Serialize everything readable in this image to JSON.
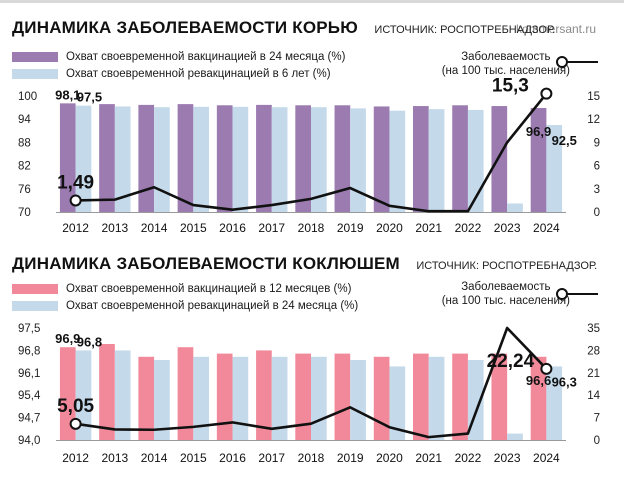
{
  "watermark": "kommersant.ru",
  "charts": [
    {
      "title": "ДИНАМИКА ЗАБОЛЕВАЕМОСТИ КОРЬЮ",
      "source": "ИСТОЧНИК: РОСПОТРЕБНАДЗОР.",
      "legend": {
        "bar1": "Охват своевременной вакцинацией в 24 месяца (%)",
        "bar2": "Охват своевременной ревакцинацией в 6 лет (%)",
        "line_1": "Заболеваемость",
        "line_2": "(на 100 тыс. населения)"
      },
      "colors": {
        "bar1": "#9b7bb0",
        "bar2": "#c4d9ea",
        "line": "#111111"
      }
    },
    {
      "title": "ДИНАМИКА ЗАБОЛЕВАЕМОСТИ КОКЛЮШЕМ",
      "source": "ИСТОЧНИК: РОСПОТРЕБНАДЗОР.",
      "legend": {
        "bar1": "Охват своевременной вакцинацией в 12 месяцев (%)",
        "bar2": "Охват своевременной ревакцинацией в 24 месяца (%)",
        "line_1": "Заболеваемость",
        "line_2": "(на 100 тыс. населения)"
      },
      "colors": {
        "bar1": "#f2899a",
        "bar2": "#c4d9ea",
        "line": "#111111"
      }
    }
  ],
  "chart_data": [
    {
      "type": "bar",
      "title": "ДИНАМИКА ЗАБОЛЕВАЕМОСТИ КОРЬЮ",
      "categories": [
        "2012",
        "2013",
        "2014",
        "2015",
        "2016",
        "2017",
        "2018",
        "2019",
        "2020",
        "2021",
        "2022",
        "2023",
        "2024"
      ],
      "series": [
        {
          "name": "Охват своевременной вакцинацией в 24 месяца (%)",
          "values": [
            98.1,
            97.9,
            97.7,
            97.9,
            97.6,
            97.7,
            97.6,
            97.6,
            97.3,
            97.4,
            97.6,
            97.4,
            96.9
          ]
        },
        {
          "name": "Охват своевременной ревакцинацией в 6 лет (%)",
          "values": [
            97.5,
            97.3,
            97.1,
            97.2,
            97.2,
            97.1,
            97.1,
            96.8,
            96.2,
            96.6,
            96.4,
            72.2,
            92.5
          ]
        }
      ],
      "line": {
        "name": "Заболеваемость (на 100 тыс. населения)",
        "values": [
          1.49,
          1.6,
          3.2,
          0.9,
          0.3,
          0.9,
          1.7,
          3.1,
          0.8,
          0.1,
          0.1,
          9.0,
          15.3
        ]
      },
      "ylim_left": [
        70,
        100
      ],
      "yticks_left": [
        70,
        76,
        82,
        88,
        94,
        100
      ],
      "ylim_right": [
        0,
        15
      ],
      "yticks_right": [
        0,
        3,
        6,
        9,
        12,
        15
      ],
      "labels": {
        "bar1_first": "98,1",
        "bar2_first": "97,5",
        "bar1_last": "96,9",
        "bar2_last": "92,5",
        "line_first": "1,49",
        "line_last": "15,3"
      }
    },
    {
      "type": "bar",
      "title": "ДИНАМИКА ЗАБОЛЕВАЕМОСТИ КОКЛЮШЕМ",
      "categories": [
        "2012",
        "2013",
        "2014",
        "2015",
        "2016",
        "2017",
        "2018",
        "2019",
        "2020",
        "2021",
        "2022",
        "2023",
        "2024"
      ],
      "series": [
        {
          "name": "Охват своевременной вакцинацией в 12 месяцев (%)",
          "values": [
            96.9,
            97.0,
            96.6,
            96.9,
            96.7,
            96.8,
            96.7,
            96.7,
            96.6,
            96.7,
            96.7,
            96.7,
            96.6
          ]
        },
        {
          "name": "Охват своевременной ревакцинацией в 24 месяца (%)",
          "values": [
            96.8,
            96.8,
            96.5,
            96.6,
            96.6,
            96.6,
            96.6,
            96.5,
            96.3,
            96.6,
            96.5,
            94.2,
            96.3
          ]
        }
      ],
      "line": {
        "name": "Заболеваемость (на 100 тыс. населения)",
        "values": [
          5.05,
          3.3,
          3.2,
          4.1,
          5.5,
          3.5,
          5.1,
          10.2,
          4.0,
          0.9,
          2.0,
          35.0,
          22.24
        ]
      },
      "ylim_left": [
        94.0,
        97.5
      ],
      "yticks_left": [
        94.0,
        94.7,
        95.4,
        96.1,
        96.8,
        97.5
      ],
      "yticks_left_labels": [
        "94,0",
        "94,7",
        "95,4",
        "96,1",
        "96,8",
        "97,5"
      ],
      "ylim_right": [
        0,
        35
      ],
      "yticks_right": [
        0,
        7,
        14,
        21,
        28,
        35
      ],
      "labels": {
        "bar1_first": "96,9",
        "bar2_first": "96,8",
        "bar1_last": "96,6",
        "bar2_last": "96,3",
        "line_first": "5,05",
        "line_last": "22,24"
      }
    }
  ]
}
